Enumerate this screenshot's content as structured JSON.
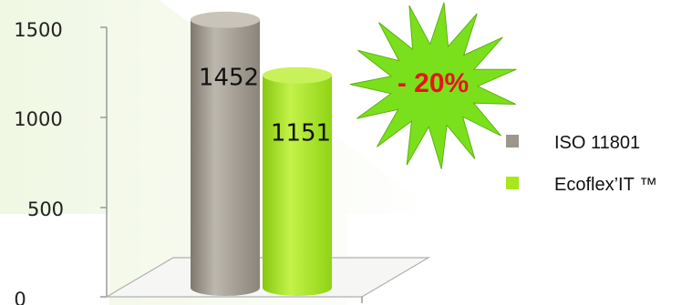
{
  "chart_data": {
    "type": "bar",
    "categories": [
      ""
    ],
    "series": [
      {
        "name": "ISO 11801",
        "values": [
          1452
        ],
        "color": "#9c968c"
      },
      {
        "name": "Ecoflex’IT ™",
        "values": [
          1151
        ],
        "color": "#a6e81a"
      }
    ],
    "data_labels": [
      "1452",
      "1151"
    ],
    "y_ticks": [
      "0",
      "500",
      "1000",
      "1500"
    ],
    "ylim": [
      0,
      1500
    ],
    "grid": false,
    "legend_position": "right",
    "annotation": {
      "text": "- 20%",
      "shape": "starburst",
      "fill": "#7be01c",
      "text_color": "#e8141b"
    },
    "title": "",
    "xlabel": "",
    "ylabel": ""
  }
}
